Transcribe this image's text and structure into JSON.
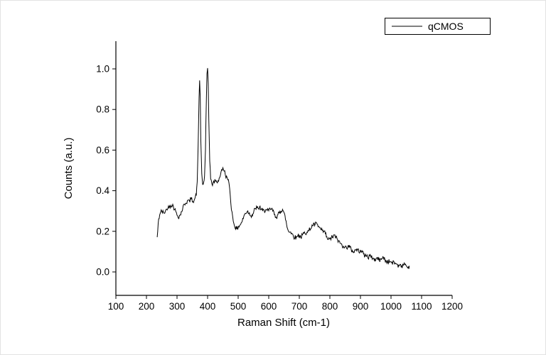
{
  "chart_data": {
    "type": "line",
    "title": "",
    "xlabel": "Raman Shift (cm-1)",
    "ylabel": "Counts (a.u.)",
    "xlim": [
      100,
      1200
    ],
    "ylim": [
      -0.12,
      1.14
    ],
    "x_ticks": [
      100,
      200,
      300,
      400,
      500,
      600,
      700,
      800,
      900,
      1000,
      1100,
      1200
    ],
    "y_ticks": [
      0.0,
      0.2,
      0.4,
      0.6,
      0.8,
      1.0
    ],
    "grid": false,
    "line_color": "#000000",
    "background_color": "#ffffff",
    "noise_amplitude": 0.012,
    "legend": {
      "position": "top-right",
      "entries": [
        {
          "label": "qCMOS",
          "color": "#000000"
        }
      ]
    },
    "series": [
      {
        "name": "qCMOS",
        "x": [
          235,
          240,
          245,
          250,
          256,
          262,
          268,
          274,
          280,
          286,
          292,
          298,
          304,
          310,
          316,
          322,
          328,
          334,
          340,
          346,
          352,
          358,
          363,
          366,
          369,
          372,
          374,
          376,
          378,
          381,
          384,
          387,
          390,
          393,
          396,
          398,
          400,
          402,
          404,
          407,
          410,
          414,
          418,
          422,
          426,
          430,
          434,
          438,
          442,
          446,
          450,
          454,
          458,
          462,
          466,
          470,
          474,
          478,
          482,
          486,
          490,
          495,
          500,
          505,
          510,
          515,
          520,
          525,
          530,
          535,
          540,
          545,
          550,
          555,
          560,
          565,
          570,
          575,
          580,
          585,
          590,
          595,
          600,
          605,
          610,
          615,
          620,
          625,
          630,
          635,
          640,
          645,
          650,
          655,
          660,
          665,
          670,
          675,
          680,
          685,
          690,
          695,
          700,
          705,
          710,
          715,
          720,
          725,
          730,
          735,
          740,
          745,
          750,
          755,
          760,
          765,
          770,
          775,
          780,
          785,
          790,
          795,
          800,
          805,
          810,
          815,
          820,
          825,
          830,
          835,
          840,
          845,
          850,
          855,
          860,
          865,
          870,
          875,
          880,
          885,
          890,
          895,
          900,
          905,
          910,
          915,
          920,
          925,
          930,
          935,
          940,
          945,
          950,
          955,
          960,
          965,
          970,
          975,
          980,
          985,
          990,
          995,
          1000,
          1005,
          1010,
          1015,
          1020,
          1025,
          1030,
          1035,
          1040,
          1045,
          1050,
          1055,
          1060
        ],
        "y": [
          0.17,
          0.26,
          0.29,
          0.3,
          0.29,
          0.3,
          0.31,
          0.32,
          0.33,
          0.33,
          0.31,
          0.29,
          0.27,
          0.28,
          0.3,
          0.33,
          0.34,
          0.35,
          0.35,
          0.36,
          0.35,
          0.36,
          0.38,
          0.44,
          0.62,
          0.86,
          0.94,
          0.86,
          0.64,
          0.48,
          0.43,
          0.44,
          0.47,
          0.6,
          0.85,
          0.97,
          1.0,
          0.93,
          0.75,
          0.55,
          0.46,
          0.43,
          0.44,
          0.44,
          0.45,
          0.44,
          0.45,
          0.46,
          0.48,
          0.5,
          0.51,
          0.5,
          0.48,
          0.47,
          0.45,
          0.44,
          0.38,
          0.31,
          0.27,
          0.24,
          0.22,
          0.21,
          0.22,
          0.23,
          0.24,
          0.26,
          0.28,
          0.29,
          0.3,
          0.29,
          0.28,
          0.28,
          0.29,
          0.31,
          0.32,
          0.31,
          0.32,
          0.31,
          0.3,
          0.3,
          0.31,
          0.3,
          0.3,
          0.31,
          0.31,
          0.3,
          0.28,
          0.27,
          0.28,
          0.29,
          0.3,
          0.31,
          0.29,
          0.26,
          0.22,
          0.2,
          0.2,
          0.19,
          0.18,
          0.17,
          0.17,
          0.18,
          0.18,
          0.17,
          0.18,
          0.19,
          0.19,
          0.2,
          0.2,
          0.21,
          0.22,
          0.23,
          0.23,
          0.24,
          0.23,
          0.22,
          0.21,
          0.2,
          0.2,
          0.19,
          0.17,
          0.16,
          0.16,
          0.17,
          0.17,
          0.18,
          0.17,
          0.16,
          0.15,
          0.14,
          0.13,
          0.13,
          0.12,
          0.12,
          0.13,
          0.12,
          0.11,
          0.1,
          0.1,
          0.11,
          0.11,
          0.1,
          0.11,
          0.1,
          0.09,
          0.08,
          0.08,
          0.07,
          0.08,
          0.07,
          0.07,
          0.06,
          0.06,
          0.07,
          0.06,
          0.06,
          0.07,
          0.07,
          0.06,
          0.05,
          0.05,
          0.05,
          0.05,
          0.04,
          0.05,
          0.04,
          0.04,
          0.03,
          0.04,
          0.03,
          0.03,
          0.04,
          0.03,
          0.02,
          0.03
        ]
      }
    ]
  }
}
